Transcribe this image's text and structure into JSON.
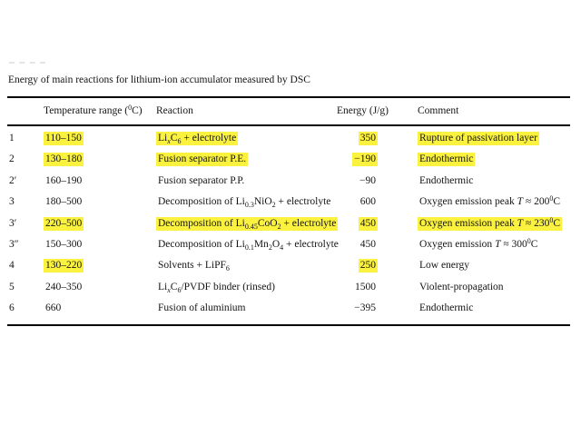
{
  "doc": {
    "title": "Energy of main reactions for lithium-ion accumulator measured by DSC",
    "highlight_color": "#fbf23f",
    "background_color": "#ffffff",
    "rule_color": "#000000"
  },
  "table": {
    "columns": {
      "temp": "Temperature range (^0^C)",
      "reaction": "Reaction",
      "energy": "Energy (J/g)",
      "comment": "Comment"
    },
    "rows": [
      {
        "num": "1",
        "temp": "110–150",
        "reaction": "Li~*x*~C~6~ + electrolyte",
        "energy": "350",
        "comment": "Rupture of passivation layer",
        "hl_temp": true,
        "hl_reaction": true,
        "hl_energy": true,
        "hl_comment": true
      },
      {
        "num": "2",
        "temp": "130–180",
        "reaction": "Fusion separator P.E.",
        "energy": "−190",
        "comment": "Endothermic",
        "hl_temp": true,
        "hl_reaction": true,
        "hl_energy": true,
        "hl_comment": true
      },
      {
        "num": "2′",
        "temp": "160–190",
        "reaction": "Fusion separator P.P.",
        "energy": "−90",
        "comment": "Endothermic"
      },
      {
        "num": "3",
        "temp": "180–500",
        "reaction": "Decomposition of Li~0.3~NiO~2~ + electrolyte",
        "energy": "600",
        "comment": "Oxygen emission peak *T* ≈ 200^0^C"
      },
      {
        "num": "3′",
        "temp": "220–500",
        "reaction": "Decomposition of Li~0.45~CoO~2~ + electrolyte",
        "energy": "450",
        "comment": "Oxygen emission peak *T* ≈ 230^0^C",
        "hl_temp": true,
        "hl_reaction": true,
        "hl_energy": true,
        "hl_comment": true
      },
      {
        "num": "3″",
        "temp": "150–300",
        "reaction": "Decomposition of Li~0.1~Mn~2~O~4~ + electrolyte",
        "energy": "450",
        "comment": "Oxygen emission *T* ≈ 300^0^C"
      },
      {
        "num": "4",
        "temp": "130–220",
        "reaction": "Solvents + LiPF~6~",
        "energy": "250",
        "comment": "Low energy",
        "hl_temp": true,
        "hl_energy": true
      },
      {
        "num": "5",
        "temp": "240–350",
        "reaction": "Li~*x*~C~6~/PVDF binder (rinsed)",
        "energy": "1500",
        "comment": "Violent-propagation"
      },
      {
        "num": "6",
        "temp": "660",
        "reaction": "Fusion of aluminium",
        "energy": "−395",
        "comment": "Endothermic"
      }
    ]
  }
}
